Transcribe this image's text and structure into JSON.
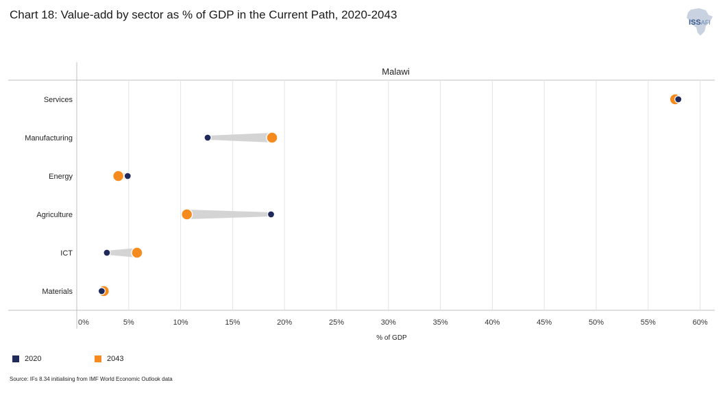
{
  "title": "Chart 18: Value-add by sector as % of GDP in the Current Path, 2020-2043",
  "logo": {
    "name": "ISS",
    "suffix": "AFI"
  },
  "source": "Source: IFs 8.34 initialising from IMF World Economic Outlook data",
  "colors": {
    "series_2020": "#1f2a5a",
    "series_2043": "#f58a1f",
    "connector": "#d4d4d4",
    "grid": "#e3e3e3"
  },
  "legend": [
    {
      "label": "2020",
      "color": "#1f2a5a"
    },
    {
      "label": "2043",
      "color": "#f58a1f"
    }
  ],
  "chart_data": {
    "type": "scatter",
    "subtype": "dumbbell",
    "panel_title": "Malawi",
    "title": "Chart 18: Value-add by sector as % of GDP in the Current Path, 2020-2043",
    "xlabel": "% of GDP",
    "ylabel": "",
    "xlim": [
      0,
      61
    ],
    "xticks": [
      0,
      5,
      10,
      15,
      20,
      25,
      30,
      35,
      40,
      45,
      50,
      55,
      60
    ],
    "xtick_labels": [
      "0%",
      "5%",
      "10%",
      "15%",
      "20%",
      "25%",
      "30%",
      "35%",
      "40%",
      "45%",
      "50%",
      "55%",
      "60%"
    ],
    "categories": [
      "Services",
      "Manufacturing",
      "Energy",
      "Agriculture",
      "ICT",
      "Materials"
    ],
    "series": [
      {
        "name": "2020",
        "values": [
          57.9,
          12.6,
          4.9,
          18.7,
          2.9,
          2.4
        ]
      },
      {
        "name": "2043",
        "values": [
          57.6,
          18.8,
          4.0,
          10.6,
          5.8,
          2.6
        ]
      }
    ],
    "grid": true,
    "legend_position": "bottom-left"
  }
}
